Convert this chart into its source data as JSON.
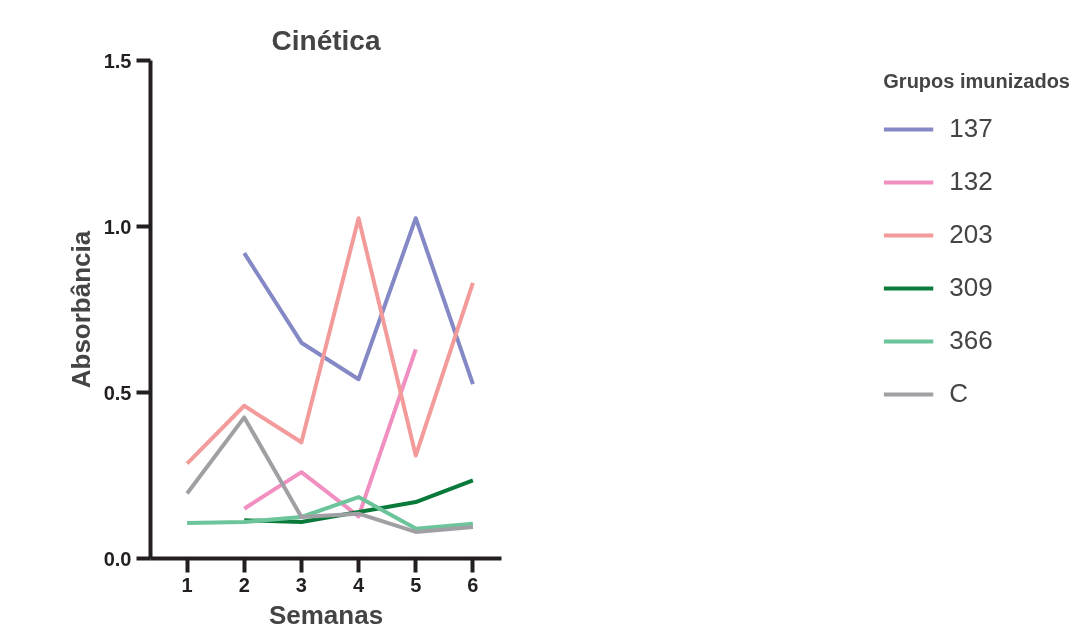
{
  "chart_data": {
    "type": "line",
    "title": "Cinética",
    "xlabel": "Semanas",
    "ylabel": "Absorbância",
    "legend_title": "Grupos imunizados",
    "x": [
      1,
      2,
      3,
      4,
      5,
      6
    ],
    "xlim": [
      0.36,
      6.5
    ],
    "xticks": [
      1,
      2,
      3,
      4,
      5,
      6
    ],
    "ylim": [
      0,
      1.5
    ],
    "yticks": [
      {
        "value": 0,
        "label": "0.0"
      },
      {
        "value": 0.5,
        "label": "0.5"
      },
      {
        "value": 1,
        "label": "1.0"
      },
      {
        "value": 1.5,
        "label": "1.5"
      }
    ],
    "grid": false,
    "legend": "right",
    "marker": "none",
    "line_style": "solid",
    "series": [
      {
        "name": "137",
        "color": "#8488c4",
        "values": [
          null,
          0.92,
          0.65,
          0.54,
          1.025,
          0.525
        ]
      },
      {
        "name": "132",
        "color": "#f08fc0",
        "values": [
          null,
          0.15,
          0.26,
          0.127,
          0.63,
          null
        ]
      },
      {
        "name": "203",
        "color": "#f39b9b",
        "values": [
          0.286,
          0.46,
          0.35,
          1.025,
          0.31,
          0.83
        ]
      },
      {
        "name": "309",
        "color": "#0a7a3a",
        "values": [
          null,
          0.115,
          0.11,
          0.14,
          0.17,
          0.235
        ]
      },
      {
        "name": "366",
        "color": "#6cc49a",
        "values": [
          0.107,
          0.11,
          0.125,
          0.185,
          0.09,
          0.105
        ]
      },
      {
        "name": "C",
        "color": "#a0a0a4",
        "values": [
          0.196,
          0.425,
          0.125,
          0.135,
          0.08,
          0.095
        ]
      }
    ]
  }
}
